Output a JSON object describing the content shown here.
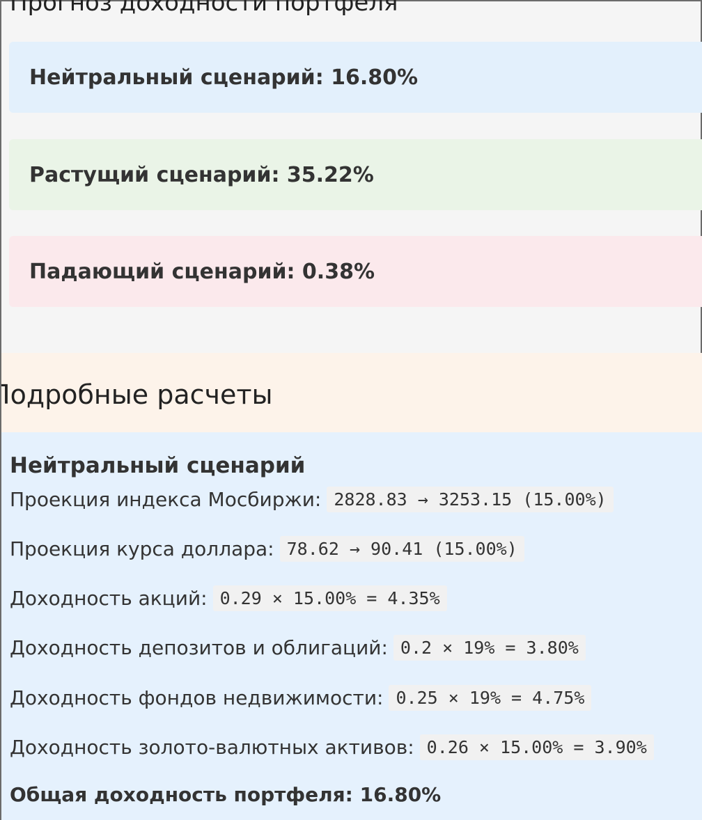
{
  "page": {
    "title": "Прогноз доходности портфеля"
  },
  "scenarios": [
    {
      "label": "Нейтральный сценарий: 16.80%",
      "color": "#e3f0fc"
    },
    {
      "label": "Растущий сценарий: 35.22%",
      "color": "#eaf4e7"
    },
    {
      "label": "Падающий сценарий: 0.38%",
      "color": "#fbe9ec"
    }
  ],
  "details": {
    "header": "Подробные расчеты",
    "scenario_title": "Нейтральный сценарий",
    "rows": [
      {
        "label": "Проекция индекса Мосбиржи:",
        "formula": "2828.83 → 3253.15 (15.00%)"
      },
      {
        "label": "Проекция курса доллара:",
        "formula": "78.62 → 90.41 (15.00%)"
      },
      {
        "label": "Доходность акций:",
        "formula": "0.29 × 15.00% = 4.35%"
      },
      {
        "label": "Доходность депозитов и облигаций:",
        "formula": "0.2 × 19% = 3.80%"
      },
      {
        "label": "Доходность фондов недвижимости:",
        "formula": "0.25 × 19% = 4.75%"
      },
      {
        "label": "Доходность золото-валютных активов:",
        "formula": "0.26 × 15.00% = 3.90%"
      }
    ],
    "total": "Общая доходность портфеля: 16.80%"
  }
}
